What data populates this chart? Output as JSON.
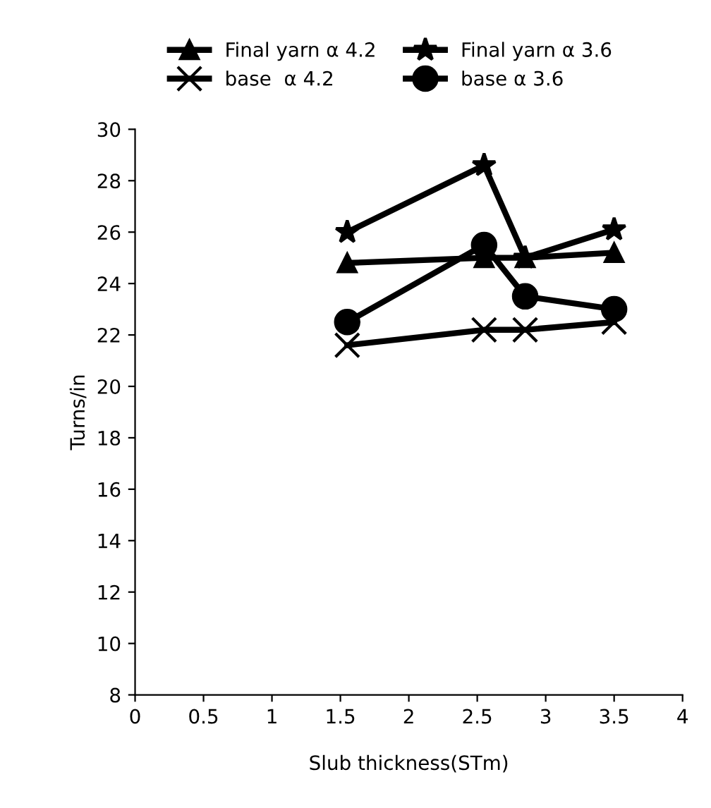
{
  "chart_data": {
    "type": "line",
    "xlabel": "Slub thickness(STm)",
    "ylabel": "Turns/in",
    "x": [
      1.55,
      2.55,
      2.85,
      3.5
    ],
    "series": [
      {
        "name": "Final yarn α 4.2",
        "color": "#000000",
        "marker": "triangle",
        "values": [
          24.8,
          25.0,
          25.0,
          25.2
        ]
      },
      {
        "name": "Final yarn α 3.6",
        "color": "#000000",
        "marker": "star",
        "values": [
          26.0,
          28.6,
          25.0,
          26.1
        ]
      },
      {
        "name": "base  α 4.2",
        "color": "#000000",
        "marker": "cross",
        "values": [
          21.6,
          22.2,
          22.2,
          22.5
        ]
      },
      {
        "name": "base α 3.6",
        "color": "#000000",
        "marker": "circle",
        "values": [
          22.5,
          25.5,
          23.5,
          23.0
        ]
      }
    ],
    "xlim": [
      0,
      4
    ],
    "xticks": [
      0,
      0.5,
      1,
      1.5,
      2,
      2.5,
      3,
      3.5,
      4
    ],
    "ylim": [
      8,
      30
    ],
    "yticks": [
      8,
      10,
      12,
      14,
      16,
      18,
      20,
      22,
      24,
      26,
      28,
      30
    ],
    "grid": false,
    "legend": "top",
    "line_style": "solid"
  }
}
